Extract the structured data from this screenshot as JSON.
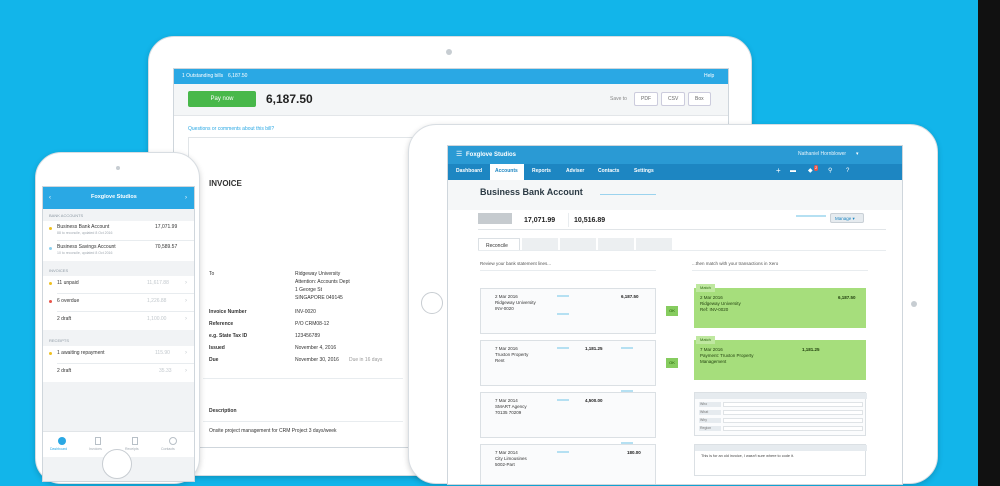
{
  "invoice_screen": {
    "notice_prefix": "1 Outstanding bills",
    "notice_amount": "6,187.50",
    "help_link": "Help",
    "pay_button": "Pay now",
    "amount_due": "6,187.50",
    "save_to_label": "Save to",
    "save_options": [
      "PDF",
      "CSV",
      "Box"
    ],
    "questions_link": "Questions or comments about this bill?",
    "heading": "INVOICE",
    "to_label": "To",
    "to_lines": [
      "Ridgeway University",
      "Attention: Accounts Dept",
      "1 George St",
      "SINGAPORE 049145"
    ],
    "fields": [
      {
        "label": "Invoice Number",
        "value": "INV-0020"
      },
      {
        "label": "Reference",
        "value": "P/O CRM08-12"
      },
      {
        "label": "e.g. State Tax ID",
        "value": "123456789"
      },
      {
        "label": "Issued",
        "value": "November 4, 2016"
      },
      {
        "label": "Due",
        "value": "November 30, 2016"
      }
    ],
    "due_note": "Due in 16 days",
    "description_header": "Description",
    "line_item": "Onsite project management for CRM Project 3 days/week"
  },
  "reconcile_screen": {
    "org_name": "Foxglove Studios",
    "nav": [
      "Dashboard",
      "Accounts",
      "Reports",
      "Adviser",
      "Contacts",
      "Settings"
    ],
    "active_nav": "Accounts",
    "user_name": "Nathaniel Hornblower",
    "notification_count": "2",
    "page_title": "Business Bank Account",
    "balance_statement": "17,071.99",
    "balance_xero": "10,516.89",
    "manage_button": "Manage",
    "tab_reconcile": "Reconcile",
    "left_header": "Review your bank statement lines...",
    "right_header": "...then match with your transactions in Xero",
    "ok_label": "OK",
    "statement_lines": [
      {
        "date": "2 Mar 2016",
        "payee": "Ridgeway University",
        "ref": "INV-0020",
        "spent": "",
        "received": "6,187.50"
      },
      {
        "date": "7 Mar 2016",
        "payee": "Truxton Property",
        "ref": "Rent",
        "spent": "1,181.25",
        "received": ""
      },
      {
        "date": "7 Mar 2014",
        "payee": "SMART Agency",
        "ref": "70135 70209",
        "spent": "4,500.00",
        "received": ""
      },
      {
        "date": "7 Mar 2014",
        "payee": "City Limousines",
        "ref": "5002-Part",
        "spent": "",
        "received": "180.00"
      }
    ],
    "matches": [
      {
        "tag": "Match",
        "date": "2 Mar 2016",
        "payee": "Ridgeway University",
        "ref": "Ref: INV-0020",
        "spent": "",
        "received": "6,187.50"
      },
      {
        "tag": "Match",
        "date": "7 Mar 2016",
        "payee": "Payment: Truxton Property",
        "ref": "Management",
        "spent": "1,181.25",
        "received": ""
      }
    ],
    "form_row_labels": [
      "Who",
      "What",
      "Why",
      "Region"
    ],
    "discuss_note": "This is for an old invoice, I wasn't sure where to code it."
  },
  "phone_screen": {
    "title": "Foxglove Studios",
    "bank_section": "BANK ACCOUNTS",
    "accounts": [
      {
        "name": "Business Bank Account",
        "sub": "88 to reconcile, updated 8 Oct 2016",
        "amount": "17,071.99"
      },
      {
        "name": "Business Savings Account",
        "sub": "10 to reconcile, updated 8 Oct 2016",
        "amount": "70,589.57"
      }
    ],
    "invoices_section": "INVOICES",
    "invoices": [
      {
        "label": "11 unpaid",
        "amount": "11,617.88",
        "dot": "#f0c020"
      },
      {
        "label": "6 overdue",
        "amount": "1,226.88",
        "dot": "#e8544a"
      },
      {
        "label": "2 draft",
        "amount": "1,100.00",
        "dot": ""
      }
    ],
    "receipts_section": "RECEIPTS",
    "receipts": [
      {
        "label": "1 awaiting repayment",
        "amount": "115.90",
        "dot": "#f0c020"
      },
      {
        "label": "2 draft",
        "amount": "35.33",
        "dot": ""
      }
    ],
    "tabs": [
      "Dashboard",
      "Invoices",
      "Receipts",
      "Contacts"
    ]
  },
  "colors": {
    "background": "#12b5ea",
    "xero_blue": "#2aa8e4",
    "dark_blue": "#0d6a9e",
    "pay_green": "#48b84a",
    "match_green": "#a6de7c"
  }
}
